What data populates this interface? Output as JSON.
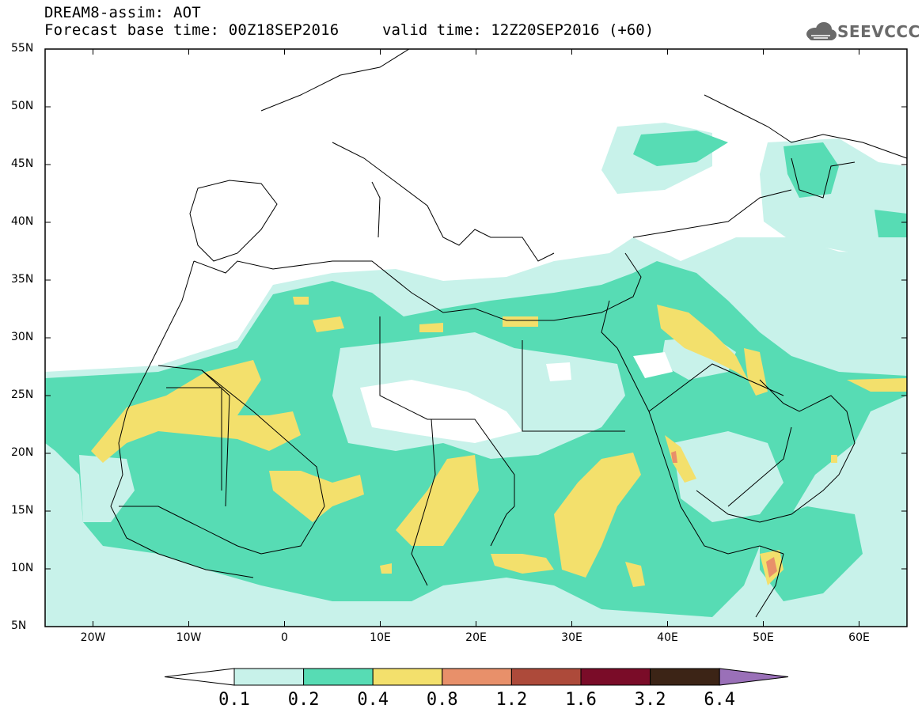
{
  "header": {
    "line1": "DREAM8-assim: AOT",
    "line2": "Forecast base time: 00Z18SEP2016",
    "valid": "valid time: 12Z20SEP2016 (+60)"
  },
  "logo": {
    "text": "SEEVCCC",
    "icon": "cloud-icon"
  },
  "axes": {
    "lat_labels": [
      "55N",
      "50N",
      "45N",
      "40N",
      "35N",
      "30N",
      "25N",
      "20N",
      "15N",
      "10N",
      "5N"
    ],
    "lon_labels": [
      "20W",
      "10W",
      "0",
      "10E",
      "20E",
      "30E",
      "40E",
      "50E",
      "60E"
    ]
  },
  "colorbar": {
    "labels": [
      "0.1",
      "0.2",
      "0.4",
      "0.8",
      "1.2",
      "1.6",
      "3.2",
      "6.4"
    ],
    "colors": [
      "#c8f2ea",
      "#57dcb4",
      "#f3e06c",
      "#e8906a",
      "#ad4a3a",
      "#7a0c28",
      "#3c2416",
      "#9a70b8"
    ]
  },
  "colors": {
    "aot_0.1": "#c8f2ea",
    "aot_0.2": "#57dcb4",
    "aot_0.4": "#f3e06c",
    "aot_0.8": "#e8906a",
    "aot_1.2": "#ad4a3a",
    "aot_1.6": "#7a0c28",
    "aot_3.2": "#3c2416",
    "aot_6.4": "#9a70b8"
  }
}
